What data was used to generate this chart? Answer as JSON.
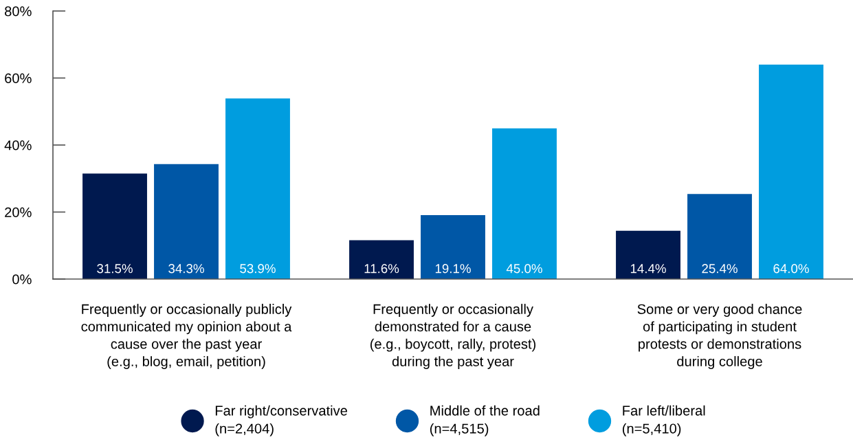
{
  "chart_data": {
    "type": "bar",
    "categories": [
      "Frequently or occasionally publicly\ncommunicated my opinion about a\ncause over the past year\n(e.g., blog, email, petition)",
      "Frequently or occasionally\ndemonstrated for a cause\n(e.g., boycott, rally, protest)\nduring the past year",
      "Some or very good chance\nof participating in student\nprotests or demonstrations\nduring college"
    ],
    "series": [
      {
        "name": "Far right/conservative\n(n=2,404)",
        "color": "#00194f",
        "values": [
          31.5,
          11.6,
          14.4
        ],
        "value_labels": [
          "31.5%",
          "11.6%",
          "14.4%"
        ]
      },
      {
        "name": "Middle of the road\n(n=4,515)",
        "color": "#0057a6",
        "values": [
          34.3,
          19.1,
          25.4
        ],
        "value_labels": [
          "34.3%",
          "19.1%",
          "25.4%"
        ]
      },
      {
        "name": "Far left/liberal\n(n=5,410)",
        "color": "#009ddf",
        "values": [
          53.9,
          45.0,
          64.0
        ],
        "value_labels": [
          "53.9%",
          "45.0%",
          "64.0%"
        ]
      }
    ],
    "ylim": [
      0,
      80
    ],
    "yticks": [
      {
        "value": 0,
        "label": "0%"
      },
      {
        "value": 20,
        "label": "20%"
      },
      {
        "value": 40,
        "label": "40%"
      },
      {
        "value": 60,
        "label": "60%"
      },
      {
        "value": 80,
        "label": "80%"
      }
    ],
    "grid": false,
    "legend": "bottom"
  }
}
